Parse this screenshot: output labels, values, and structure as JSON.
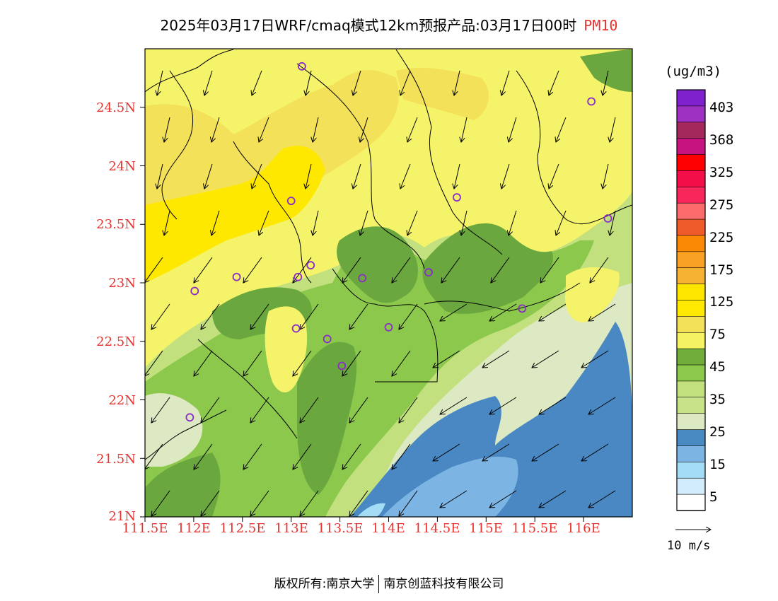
{
  "header": {
    "title": "2025年03月17日WRF/cmaq模式12km预报产品:03月17日00时",
    "pollutant": "PM10"
  },
  "colors": {
    "c5": "#f7fbff",
    "c15": "#a2d9f5",
    "c25": "#4a88c3",
    "c35": "#c5e59a",
    "c45": "#8cc84c",
    "c75": "#f5f36a",
    "c125": "#fde93a",
    "c175": "#f7ac34",
    "c225": "#f08b2b",
    "c275": "#f96565",
    "c325": "#f4254b",
    "c368": "#be1b74",
    "c403": "#9b31c6",
    "dark_green": "#6aa73e",
    "yellow_band": "#ffe200",
    "deep_blue": "#3a7dbd",
    "station": "#8b2cc9",
    "axis_label": "#e8322e"
  },
  "map": {
    "lon_range": [
      111.5,
      116.5
    ],
    "lat_range": [
      21.0,
      25.0
    ],
    "y_ticks": [
      "24.5N",
      "24N",
      "23.5N",
      "23N",
      "22.5N",
      "22N",
      "21.5N",
      "21N"
    ],
    "x_ticks": [
      "111.5E",
      "112E",
      "112.5E",
      "113E",
      "113.5E",
      "114E",
      "114.5E",
      "115E",
      "115.5E",
      "116E"
    ],
    "stations": [
      {
        "lon": 113.11,
        "lat": 24.85
      },
      {
        "lon": 116.08,
        "lat": 24.55
      },
      {
        "lon": 113.0,
        "lat": 23.7
      },
      {
        "lon": 114.7,
        "lat": 23.73
      },
      {
        "lon": 116.25,
        "lat": 23.55
      },
      {
        "lon": 113.2,
        "lat": 23.15
      },
      {
        "lon": 113.07,
        "lat": 23.05
      },
      {
        "lon": 112.44,
        "lat": 23.05
      },
      {
        "lon": 113.73,
        "lat": 23.04
      },
      {
        "lon": 114.41,
        "lat": 23.09
      },
      {
        "lon": 112.01,
        "lat": 22.93
      },
      {
        "lon": 115.37,
        "lat": 22.78
      },
      {
        "lon": 113.05,
        "lat": 22.61
      },
      {
        "lon": 114.0,
        "lat": 22.62
      },
      {
        "lon": 113.37,
        "lat": 22.52
      },
      {
        "lon": 113.52,
        "lat": 22.29
      },
      {
        "lon": 111.96,
        "lat": 21.85
      }
    ]
  },
  "legend": {
    "unit": "(ug/m3)",
    "labels": [
      "403",
      "368",
      "325",
      "275",
      "225",
      "175",
      "125",
      "75",
      "45",
      "35",
      "25",
      "15",
      "5"
    ],
    "colors": [
      "#7f22cd",
      "#9c31c2",
      "#a3285c",
      "#c7137f",
      "#ff0000",
      "#f30e4a",
      "#f8265a",
      "#fb6b6b",
      "#ef5b2b",
      "#fc8905",
      "#f8a123",
      "#f6b233",
      "#ffe600",
      "#ffe900",
      "#f4e15a",
      "#f5f362",
      "#70ad3a",
      "#8cc84c",
      "#c2e07e",
      "#c8e28a",
      "#dde9c2",
      "#4a8ac3",
      "#7cb5e4",
      "#a5dcf5",
      "#d2ecfb",
      "#ffffff"
    ],
    "wind_reference": "10 m/s"
  },
  "footer": {
    "left": "版权所有:南京大学",
    "right": "南京创蓝科技有限公司"
  }
}
